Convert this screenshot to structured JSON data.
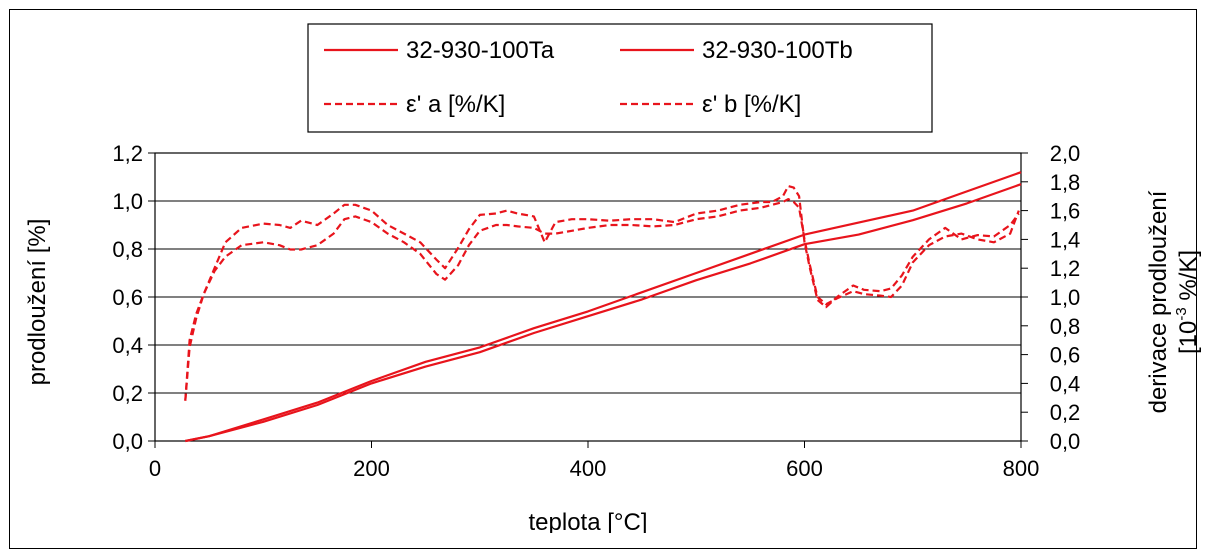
{
  "chart_data": {
    "type": "line",
    "title": "",
    "xlabel": "teplota [°C]",
    "ylabel": "prodloužení [%]",
    "y2label_line1": "derivace prodloužení",
    "y2label_line2_pre": "[10",
    "y2label_line2_sup": "-3",
    "y2label_line2_post": " %/K]",
    "xlim": [
      0,
      800
    ],
    "ylim": [
      0,
      1.2
    ],
    "y2lim": [
      0,
      2.0
    ],
    "x_ticks": [
      "0",
      "200",
      "400",
      "600",
      "800"
    ],
    "y_ticks": [
      "0,0",
      "0,2",
      "0,4",
      "0,6",
      "0,8",
      "1,0",
      "1,2"
    ],
    "y2_ticks": [
      "0,0",
      "0,2",
      "0,4",
      "0,6",
      "0,8",
      "1,0",
      "1,2",
      "1,4",
      "1,6",
      "1,8",
      "2,0"
    ],
    "grid": "horizontal",
    "legend_position": "top",
    "line_color": "#e8141c",
    "series": [
      {
        "name": "32-930-100Ta",
        "axis": "left",
        "style": "solid",
        "x": [
          28,
          50,
          100,
          150,
          200,
          250,
          300,
          350,
          400,
          450,
          500,
          550,
          600,
          650,
          700,
          750,
          800
        ],
        "y": [
          0.0,
          0.02,
          0.09,
          0.16,
          0.25,
          0.33,
          0.39,
          0.47,
          0.54,
          0.62,
          0.7,
          0.78,
          0.86,
          0.91,
          0.96,
          1.04,
          1.12
        ]
      },
      {
        "name": "32-930-100Tb",
        "axis": "left",
        "style": "solid",
        "x": [
          28,
          50,
          100,
          150,
          200,
          250,
          300,
          350,
          400,
          450,
          500,
          550,
          600,
          650,
          700,
          750,
          800
        ],
        "y": [
          0.0,
          0.02,
          0.08,
          0.15,
          0.24,
          0.31,
          0.37,
          0.45,
          0.52,
          0.59,
          0.67,
          0.74,
          0.82,
          0.86,
          0.92,
          0.99,
          1.07
        ]
      },
      {
        "name": "ε' a [%/K]",
        "axis": "right",
        "style": "dashed",
        "x": [
          28,
          32,
          38,
          45,
          55,
          65,
          80,
          100,
          115,
          125,
          135,
          150,
          165,
          175,
          185,
          200,
          215,
          230,
          245,
          260,
          268,
          280,
          290,
          300,
          315,
          325,
          335,
          350,
          360,
          370,
          385,
          400,
          420,
          440,
          460,
          480,
          500,
          520,
          540,
          560,
          570,
          580,
          585,
          590,
          595,
          600,
          605,
          612,
          620,
          630,
          645,
          655,
          670,
          680,
          690,
          700,
          715,
          730,
          745,
          760,
          775,
          790,
          798
        ],
        "y": [
          0.28,
          0.65,
          0.85,
          1.02,
          1.2,
          1.38,
          1.48,
          1.51,
          1.5,
          1.48,
          1.53,
          1.5,
          1.58,
          1.64,
          1.64,
          1.6,
          1.5,
          1.44,
          1.38,
          1.26,
          1.2,
          1.34,
          1.47,
          1.57,
          1.58,
          1.6,
          1.58,
          1.56,
          1.38,
          1.52,
          1.54,
          1.54,
          1.53,
          1.54,
          1.54,
          1.52,
          1.58,
          1.6,
          1.64,
          1.66,
          1.66,
          1.7,
          1.77,
          1.76,
          1.7,
          1.38,
          1.2,
          0.98,
          0.93,
          1.0,
          1.08,
          1.05,
          1.04,
          1.06,
          1.15,
          1.28,
          1.4,
          1.48,
          1.4,
          1.43,
          1.42,
          1.5,
          1.58
        ]
      },
      {
        "name": "ε' b [%/K]",
        "axis": "right",
        "style": "dashed",
        "x": [
          28,
          32,
          38,
          45,
          55,
          65,
          80,
          100,
          115,
          125,
          135,
          150,
          165,
          175,
          185,
          200,
          215,
          230,
          245,
          260,
          268,
          280,
          290,
          300,
          315,
          325,
          335,
          350,
          360,
          370,
          385,
          400,
          420,
          440,
          460,
          480,
          500,
          520,
          540,
          560,
          570,
          580,
          585,
          590,
          595,
          600,
          605,
          612,
          620,
          630,
          645,
          655,
          670,
          680,
          690,
          700,
          715,
          730,
          745,
          760,
          775,
          790,
          798
        ],
        "y": [
          0.28,
          0.7,
          0.88,
          1.02,
          1.18,
          1.28,
          1.36,
          1.38,
          1.36,
          1.33,
          1.33,
          1.36,
          1.44,
          1.54,
          1.56,
          1.52,
          1.44,
          1.38,
          1.3,
          1.16,
          1.12,
          1.22,
          1.36,
          1.46,
          1.5,
          1.5,
          1.49,
          1.48,
          1.44,
          1.44,
          1.46,
          1.48,
          1.5,
          1.5,
          1.49,
          1.5,
          1.54,
          1.56,
          1.6,
          1.62,
          1.64,
          1.66,
          1.68,
          1.66,
          1.62,
          1.4,
          1.22,
          1.0,
          0.95,
          0.99,
          1.04,
          1.02,
          1.01,
          1.0,
          1.08,
          1.24,
          1.36,
          1.42,
          1.44,
          1.4,
          1.38,
          1.44,
          1.6
        ]
      }
    ]
  }
}
